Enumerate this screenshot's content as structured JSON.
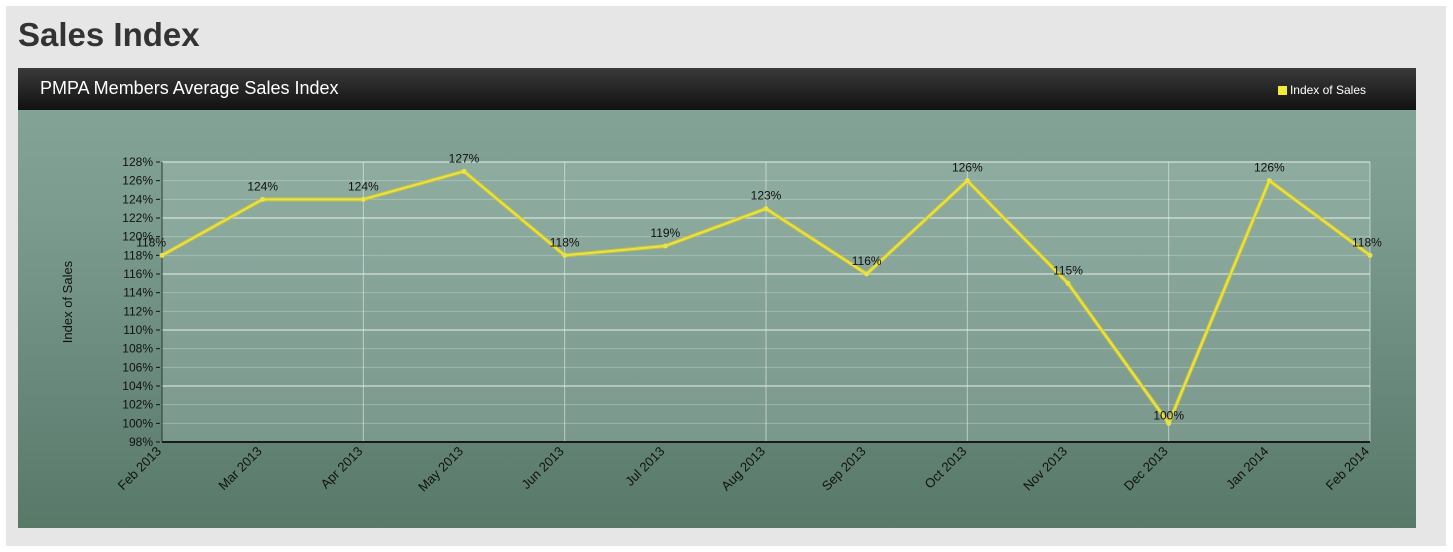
{
  "page": {
    "title": "Sales Index"
  },
  "chart_data": {
    "type": "line",
    "title": "PMPA Members Average Sales Index",
    "ylabel": "Index of Sales",
    "xlabel": "",
    "categories": [
      "Feb 2013",
      "Mar 2013",
      "Apr 2013",
      "May 2013",
      "Jun 2013",
      "Jul 2013",
      "Aug 2013",
      "Sep 2013",
      "Oct 2013",
      "Nov 2013",
      "Dec 2013",
      "Jan 2014",
      "Feb 2014"
    ],
    "series": [
      {
        "name": "Index of Sales",
        "values": [
          118,
          124,
          124,
          127,
          118,
          119,
          123,
          116,
          126,
          115,
          100,
          126,
          118
        ],
        "labels": [
          "118%",
          "124%",
          "124%",
          "127%",
          "118%",
          "119%",
          "123%",
          "116%",
          "126%",
          "115%",
          "100%",
          "126%",
          "118%"
        ],
        "color": "#e9e34a"
      }
    ],
    "ylim": [
      98,
      128
    ],
    "yticks": [
      "98%",
      "100%",
      "102%",
      "104%",
      "106%",
      "108%",
      "110%",
      "112%",
      "114%",
      "116%",
      "118%",
      "120%",
      "122%",
      "124%",
      "126%",
      "128%"
    ],
    "ytick_values": [
      98,
      100,
      102,
      104,
      106,
      108,
      110,
      112,
      114,
      116,
      118,
      120,
      122,
      124,
      126,
      128
    ],
    "legend": {
      "position": "top-right",
      "label": "Index of Sales"
    },
    "grid": true
  }
}
